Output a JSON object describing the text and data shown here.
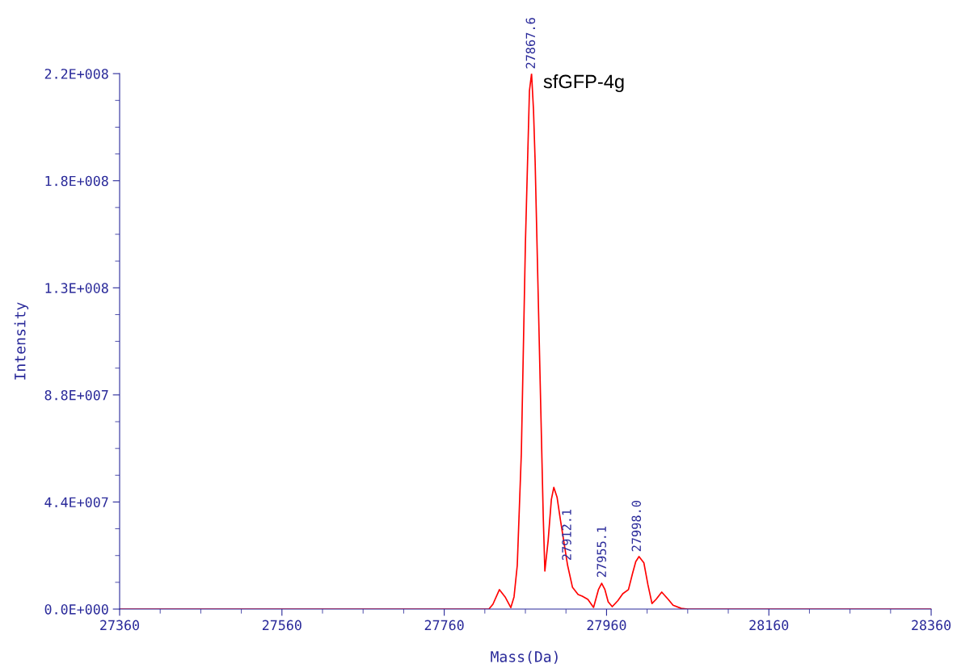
{
  "chart_data": {
    "type": "line",
    "xlabel": "Mass(Da)",
    "ylabel": "Intensity",
    "xlim": [
      27360,
      28360
    ],
    "xticks": [
      27360,
      27560,
      27760,
      27960,
      28160,
      28360
    ],
    "ylim": [
      0,
      220000000
    ],
    "yticks": [
      {
        "value": 0,
        "label": "0.0E+000"
      },
      {
        "value": 44000000,
        "label": "4.4E+007"
      },
      {
        "value": 88000000,
        "label": "8.8E+007"
      },
      {
        "value": 132000000,
        "label": "1.3E+008"
      },
      {
        "value": 176000000,
        "label": "1.8E+008"
      },
      {
        "value": 220000000,
        "label": "2.2E+008"
      }
    ],
    "grid": false,
    "marker": "none",
    "line_style": "solid",
    "series": [
      {
        "color": "#ff0000",
        "x": [
          27360,
          27815,
          27820,
          27828,
          27835,
          27842,
          27846,
          27850,
          27855,
          27860,
          27865,
          27867.6,
          27870,
          27872,
          27877,
          27882,
          27884,
          27888,
          27892,
          27895,
          27899,
          27903,
          27912,
          27918,
          27925,
          27930,
          27937,
          27944,
          27950,
          27954,
          27958,
          27962,
          27967,
          27974,
          27980,
          27987,
          27992,
          27996,
          28000,
          28006,
          28011,
          28016,
          28021,
          28028,
          28036,
          28042,
          28052,
          28060,
          28360
        ],
        "values": [
          0,
          0,
          2000000,
          8000000,
          5000000,
          600000,
          5000000,
          18000000,
          64000000,
          150000000,
          213000000,
          220000000,
          205000000,
          184000000,
          111000000,
          38000000,
          15600000,
          28000000,
          45000000,
          50000000,
          46000000,
          37000000,
          18000000,
          9000000,
          6000000,
          5300000,
          4000000,
          700000,
          8000000,
          10600000,
          8000000,
          3000000,
          1000000,
          3500000,
          6300000,
          8000000,
          14600000,
          19500000,
          21600000,
          19000000,
          10000000,
          2300000,
          4000000,
          7000000,
          4000000,
          1600000,
          300000,
          0,
          0
        ]
      }
    ],
    "annotations": [
      {
        "text": "27867.6",
        "x": 27867.6,
        "y": 220000000
      },
      {
        "text": "27912.1",
        "x": 27912.1,
        "y": 18000000
      },
      {
        "text": "27955.1",
        "x": 27955.1,
        "y": 11000000
      },
      {
        "text": "27998.0",
        "x": 27998.0,
        "y": 21600000
      },
      "sfGFP-4g"
    ]
  }
}
